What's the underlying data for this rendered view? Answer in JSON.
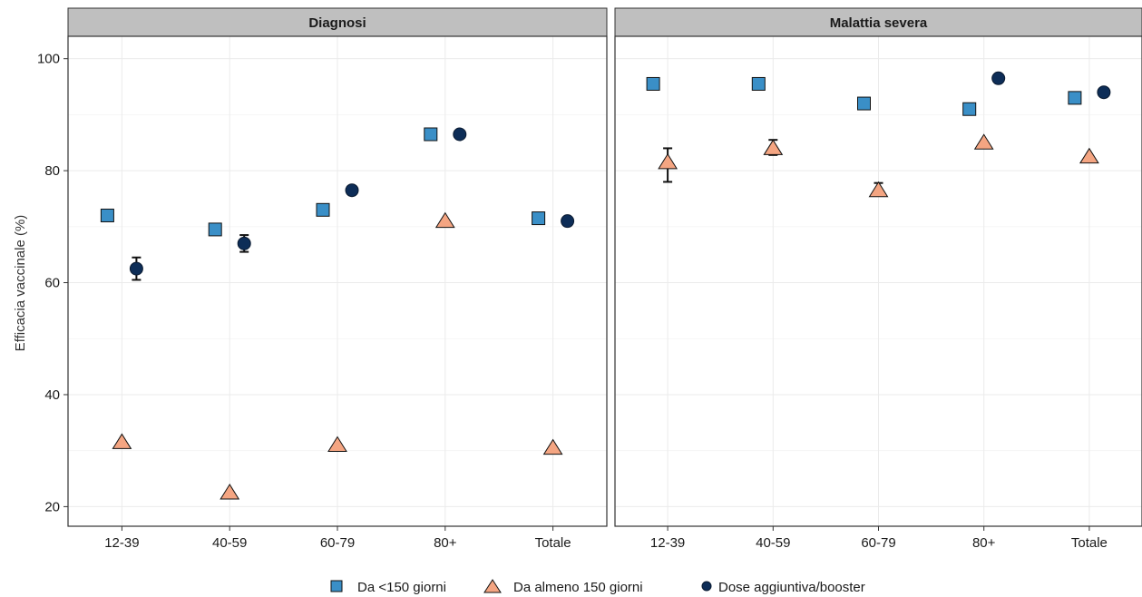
{
  "chart_data": {
    "type": "scatter",
    "ylabel": "Efficacia vaccinale (%)",
    "xlabel": "",
    "ylim": [
      16.5,
      104
    ],
    "yticks": [
      20,
      40,
      60,
      80,
      100
    ],
    "categories": [
      "12-39",
      "40-59",
      "60-79",
      "80+",
      "Totale"
    ],
    "grid": true,
    "legend_position": "bottom",
    "series": [
      {
        "name": "Da <150 giorni",
        "marker": "square",
        "color": "#3a8fc7"
      },
      {
        "name": "Da almeno 150 giorni",
        "marker": "triangle",
        "color": "#f4a582"
      },
      {
        "name": "Dose aggiuntiva/booster",
        "marker": "circle",
        "color": "#0d2d57"
      }
    ],
    "panels": [
      {
        "title": "Diagnosi",
        "points": [
          {
            "category": "12-39",
            "series": 0,
            "y": 72.0
          },
          {
            "category": "12-39",
            "series": 1,
            "y": 31.5
          },
          {
            "category": "12-39",
            "series": 2,
            "y": 62.5,
            "ymin": 60.5,
            "ymax": 64.5
          },
          {
            "category": "40-59",
            "series": 0,
            "y": 69.5
          },
          {
            "category": "40-59",
            "series": 1,
            "y": 22.5
          },
          {
            "category": "40-59",
            "series": 2,
            "y": 67.0,
            "ymin": 65.5,
            "ymax": 68.5
          },
          {
            "category": "60-79",
            "series": 0,
            "y": 73.0
          },
          {
            "category": "60-79",
            "series": 1,
            "y": 31.0
          },
          {
            "category": "60-79",
            "series": 2,
            "y": 76.5,
            "ymin": 75.8,
            "ymax": 77.2
          },
          {
            "category": "80+",
            "series": 0,
            "y": 86.5
          },
          {
            "category": "80+",
            "series": 1,
            "y": 71.0
          },
          {
            "category": "80+",
            "series": 2,
            "y": 86.5
          },
          {
            "category": "Totale",
            "series": 0,
            "y": 71.5
          },
          {
            "category": "Totale",
            "series": 1,
            "y": 30.5
          },
          {
            "category": "Totale",
            "series": 2,
            "y": 71.0
          }
        ]
      },
      {
        "title": "Malattia severa",
        "points": [
          {
            "category": "12-39",
            "series": 0,
            "y": 95.5
          },
          {
            "category": "12-39",
            "series": 1,
            "y": 81.5,
            "ymin": 78.0,
            "ymax": 84.0
          },
          {
            "category": "40-59",
            "series": 0,
            "y": 95.5
          },
          {
            "category": "40-59",
            "series": 1,
            "y": 84.0,
            "ymin": 82.8,
            "ymax": 85.5
          },
          {
            "category": "60-79",
            "series": 0,
            "y": 92.0
          },
          {
            "category": "60-79",
            "series": 1,
            "y": 76.5,
            "ymin": 75.5,
            "ymax": 77.8
          },
          {
            "category": "80+",
            "series": 0,
            "y": 91.0
          },
          {
            "category": "80+",
            "series": 1,
            "y": 85.0
          },
          {
            "category": "80+",
            "series": 2,
            "y": 96.5
          },
          {
            "category": "Totale",
            "series": 0,
            "y": 93.0
          },
          {
            "category": "Totale",
            "series": 1,
            "y": 82.5
          },
          {
            "category": "Totale",
            "series": 2,
            "y": 94.0
          }
        ]
      }
    ]
  }
}
